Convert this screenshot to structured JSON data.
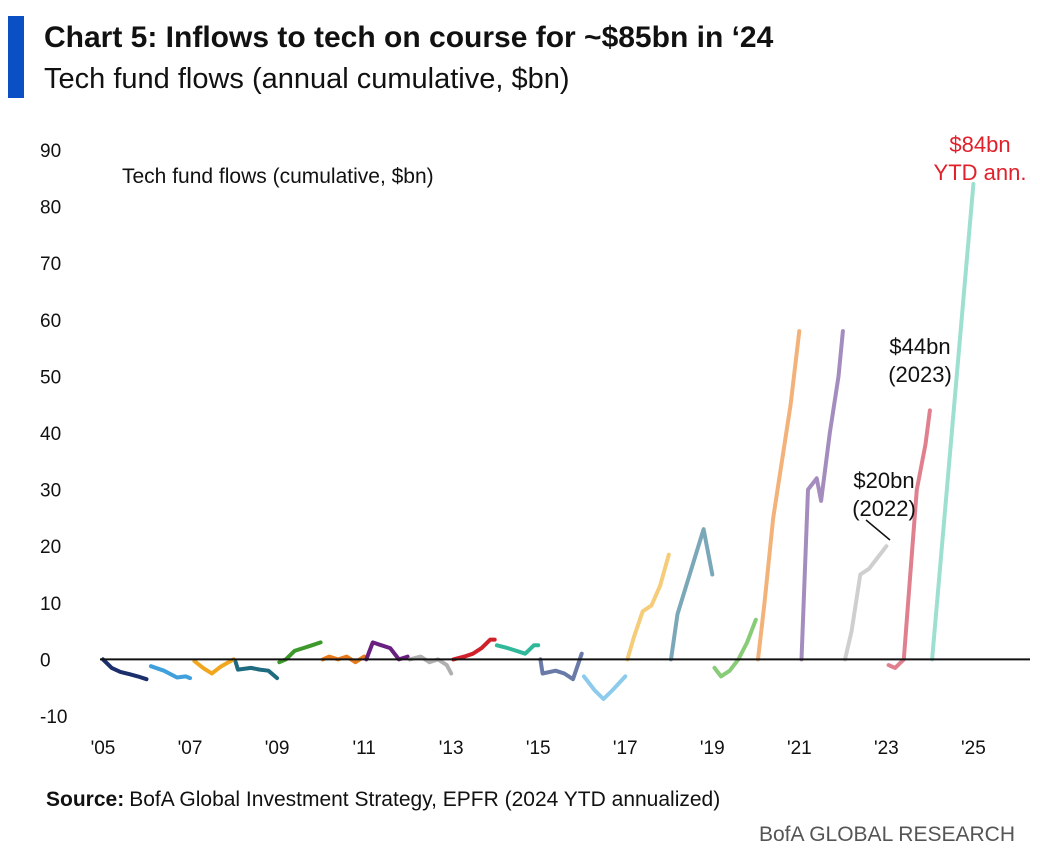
{
  "title": "Chart 5: Inflows to tech on course for ~$85bn in ‘24",
  "subtitle": "Tech fund flows (annual cumulative, $bn)",
  "source": {
    "label": "Source:",
    "text": "BofA Global Investment Strategy, EPFR (2024 YTD annualized)"
  },
  "footer": "BofA GLOBAL RESEARCH",
  "chart_data": {
    "type": "line",
    "axis_label": "Tech fund flows (cumulative, $bn)",
    "annotations": [
      {
        "lines": [
          "$84bn",
          "YTD ann."
        ],
        "color": "#e0202a"
      },
      {
        "lines": [
          "$44bn",
          "(2023)"
        ],
        "color": "#111111"
      },
      {
        "lines": [
          "$20bn",
          "(2022)"
        ],
        "color": "#111111"
      }
    ],
    "xlim": [
      2005,
      2026.3
    ],
    "xticks": [
      {
        "value": 2005,
        "label": "'05"
      },
      {
        "value": 2007,
        "label": "'07"
      },
      {
        "value": 2009,
        "label": "'09"
      },
      {
        "value": 2011,
        "label": "'11"
      },
      {
        "value": 2013,
        "label": "'13"
      },
      {
        "value": 2015,
        "label": "'15"
      },
      {
        "value": 2017,
        "label": "'17"
      },
      {
        "value": 2019,
        "label": "'19"
      },
      {
        "value": 2021,
        "label": "'21"
      },
      {
        "value": 2023,
        "label": "'23"
      },
      {
        "value": 2025,
        "label": "'25"
      }
    ],
    "ylim": [
      -10,
      90
    ],
    "yticks": [
      -10,
      0,
      10,
      20,
      30,
      40,
      50,
      60,
      70,
      80,
      90
    ],
    "series": [
      {
        "color": "#1a2f6b",
        "x": [
          2005,
          2005.2,
          2005.4,
          2005.6,
          2005.8,
          2006
        ],
        "values": [
          0,
          -1.5,
          -2.2,
          -2.6,
          -3,
          -3.5
        ]
      },
      {
        "color": "#3fa0dc",
        "x": [
          2006.1,
          2006.4,
          2006.7,
          2006.9,
          2007
        ],
        "values": [
          -1.2,
          -2,
          -3.2,
          -3,
          -3.3
        ]
      },
      {
        "color": "#f0a71e",
        "x": [
          2007.1,
          2007.3,
          2007.5,
          2007.7,
          2008
        ],
        "values": [
          -0.3,
          -1.5,
          -2.5,
          -1.3,
          0
        ]
      },
      {
        "color": "#1f6b80",
        "x": [
          2008.05,
          2008.1,
          2008.4,
          2008.6,
          2008.8,
          2009
        ],
        "values": [
          -0.5,
          -1.8,
          -1.5,
          -1.8,
          -2,
          -3.3
        ]
      },
      {
        "color": "#3d9a2a",
        "x": [
          2009.05,
          2009.2,
          2009.4,
          2009.6,
          2009.8,
          2010
        ],
        "values": [
          -0.5,
          0,
          1.5,
          2,
          2.5,
          3
        ]
      },
      {
        "color": "#e87b1e",
        "x": [
          2010.05,
          2010.2,
          2010.4,
          2010.6,
          2010.8,
          2011
        ],
        "values": [
          0,
          0.5,
          0,
          0.5,
          -0.5,
          0.5
        ]
      },
      {
        "color": "#6a2080",
        "x": [
          2011.05,
          2011.2,
          2011.4,
          2011.6,
          2011.8,
          2012
        ],
        "values": [
          0,
          3,
          2.5,
          2,
          0,
          0.5
        ]
      },
      {
        "color": "#b0b0b0",
        "x": [
          2012.05,
          2012.3,
          2012.5,
          2012.7,
          2012.9,
          2013
        ],
        "values": [
          0,
          0.5,
          -0.5,
          0,
          -1,
          -2.5
        ]
      },
      {
        "color": "#d0202a",
        "x": [
          2013.05,
          2013.3,
          2013.5,
          2013.7,
          2013.9,
          2014
        ],
        "values": [
          0,
          0.5,
          1,
          2,
          3.5,
          3.5
        ]
      },
      {
        "color": "#30b89a",
        "x": [
          2014.05,
          2014.3,
          2014.5,
          2014.7,
          2014.9,
          2015
        ],
        "values": [
          2.5,
          2,
          1.5,
          1,
          2.5,
          2.5
        ]
      },
      {
        "color": "#6a7aa8",
        "x": [
          2015.05,
          2015.1,
          2015.4,
          2015.6,
          2015.8,
          2016
        ],
        "values": [
          0,
          -2.5,
          -2,
          -2.5,
          -3.5,
          1
        ]
      },
      {
        "color": "#8dcbec",
        "x": [
          2016.05,
          2016.3,
          2016.5,
          2016.7,
          2017
        ],
        "values": [
          -3,
          -5.5,
          -7,
          -5.5,
          -3
        ]
      },
      {
        "color": "#f5cd7a",
        "x": [
          2017.05,
          2017.2,
          2017.4,
          2017.6,
          2017.8,
          2018
        ],
        "values": [
          0,
          4,
          8.5,
          9.5,
          13,
          18.5
        ]
      },
      {
        "color": "#7aa8b8",
        "x": [
          2018.05,
          2018.2,
          2018.4,
          2018.6,
          2018.8,
          2019
        ],
        "values": [
          0,
          8,
          13,
          18,
          23,
          15
        ]
      },
      {
        "color": "#88cc77",
        "x": [
          2019.05,
          2019.2,
          2019.4,
          2019.6,
          2019.8,
          2020
        ],
        "values": [
          -1.5,
          -3,
          -2,
          0,
          3,
          7
        ]
      },
      {
        "color": "#f2b27a",
        "x": [
          2020.05,
          2020.2,
          2020.4,
          2020.6,
          2020.8,
          2021
        ],
        "values": [
          0,
          10,
          25,
          35,
          45,
          58
        ]
      },
      {
        "color": "#a48dbe",
        "x": [
          2021.05,
          2021.2,
          2021.4,
          2021.5,
          2021.7,
          2021.9,
          2022
        ],
        "values": [
          0,
          30,
          32,
          28,
          40,
          50,
          58
        ]
      },
      {
        "color": "#cfcfcf",
        "x": [
          2022.05,
          2022.2,
          2022.4,
          2022.6,
          2022.8,
          2023
        ],
        "values": [
          0,
          5,
          15,
          16,
          18,
          20
        ]
      },
      {
        "color": "#e0808f",
        "x": [
          2023.05,
          2023.2,
          2023.4,
          2023.5,
          2023.7,
          2023.9,
          2024
        ],
        "values": [
          -1,
          -1.5,
          0,
          10,
          30,
          38,
          44
        ]
      },
      {
        "color": "#9ee0d0",
        "x": [
          2024.05,
          2025
        ],
        "values": [
          0,
          84
        ]
      }
    ]
  }
}
